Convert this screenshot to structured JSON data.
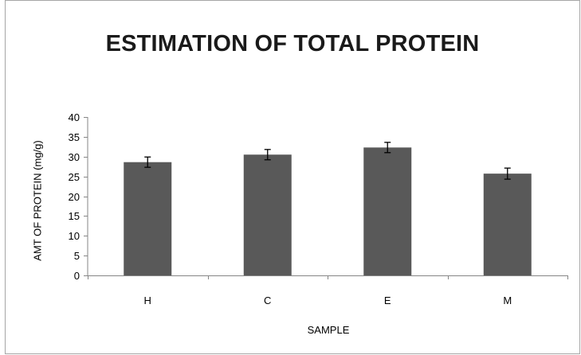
{
  "chart_data": {
    "type": "bar",
    "title": "ESTIMATION OF TOTAL PROTEIN",
    "xlabel": "SAMPLE",
    "ylabel": "AMT OF PROTEIN  (mg/g)",
    "categories": [
      "H",
      "C",
      "E",
      "M"
    ],
    "values": [
      28.6,
      30.5,
      32.3,
      25.7
    ],
    "error": [
      1.3,
      1.3,
      1.3,
      1.4
    ],
    "ylim": [
      0,
      40
    ],
    "yticks": [
      0,
      5,
      10,
      15,
      20,
      25,
      30,
      35,
      40
    ],
    "grid": false,
    "legend": "none",
    "bar_color": "#595959",
    "error_bar_color": "#000000"
  }
}
